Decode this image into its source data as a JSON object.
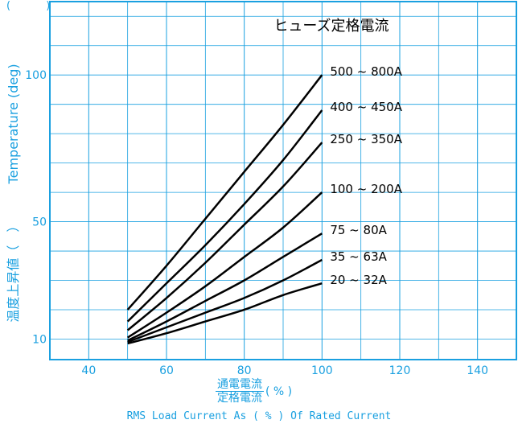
{
  "chart_data": {
    "type": "line",
    "title": "ヒューズ定格電流",
    "ylabel_jp": "温度上昇値（　）",
    "ylabel_en": "Temperature (deg)",
    "xlabel_jp_numerator": "通電電流",
    "xlabel_jp_denominator": "定格電流",
    "xlabel_jp_suffix": "( % )",
    "xlabel_en": "RMS Load Current As ( % ) Of Rated Current",
    "y_unit_parens": "(  )",
    "xlim": [
      30,
      150
    ],
    "ylim": [
      3,
      125
    ],
    "x_ticks": [
      40,
      60,
      80,
      100,
      120,
      140
    ],
    "x_tick_labels": [
      "40",
      "60",
      "80",
      "100",
      "120",
      "140"
    ],
    "y_ticks": [
      10,
      50,
      100
    ],
    "y_tick_labels": [
      "10",
      "50",
      "100"
    ],
    "grid": true,
    "series": [
      {
        "name": "500 ~ 800A",
        "x": [
          50,
          60,
          70,
          80,
          90,
          100
        ],
        "y": [
          20,
          35,
          51,
          67,
          83,
          100
        ]
      },
      {
        "name": "400 ~ 450A",
        "x": [
          50,
          60,
          70,
          80,
          90,
          100
        ],
        "y": [
          16,
          29,
          42,
          56,
          71,
          88
        ]
      },
      {
        "name": "250 ~ 350A",
        "x": [
          50,
          60,
          70,
          80,
          90,
          100
        ],
        "y": [
          13,
          24,
          36,
          49,
          62,
          77
        ]
      },
      {
        "name": "100 ~ 200A",
        "x": [
          50,
          60,
          70,
          80,
          90,
          100
        ],
        "y": [
          10.5,
          19,
          28,
          38,
          48,
          60
        ]
      },
      {
        "name": "75 ~ 80A",
        "x": [
          50,
          60,
          70,
          80,
          90,
          100
        ],
        "y": [
          9.5,
          16,
          23,
          30,
          38,
          46
        ]
      },
      {
        "name": "35 ~ 63A",
        "x": [
          50,
          60,
          70,
          80,
          90,
          100
        ],
        "y": [
          9,
          14,
          19,
          24,
          30,
          37
        ]
      },
      {
        "name": "20 ~ 32A",
        "x": [
          50,
          60,
          70,
          80,
          90,
          100
        ],
        "y": [
          8.5,
          12,
          16,
          20,
          25,
          29
        ]
      }
    ],
    "colors": {
      "axis": "#1aa0e0",
      "grid": "#1aa0e0",
      "line": "#000000"
    }
  }
}
